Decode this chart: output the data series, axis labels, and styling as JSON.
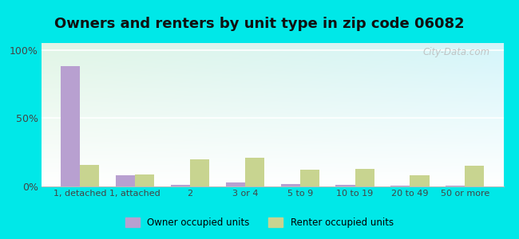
{
  "title": "Owners and renters by unit type in zip code 06082",
  "categories": [
    "1, detached",
    "1, attached",
    "2",
    "3 or 4",
    "5 to 9",
    "10 to 19",
    "20 to 49",
    "50 or more"
  ],
  "owner_values": [
    88,
    8,
    1,
    3,
    2,
    1,
    0.5,
    0.5
  ],
  "renter_values": [
    16,
    9,
    20,
    21,
    12,
    13,
    8,
    15
  ],
  "owner_color": "#b8a0d0",
  "renter_color": "#c8d490",
  "background_outer": "#00e8e8",
  "background_plot_topleft": "#d8ede0",
  "background_plot_topright": "#c8e8d8",
  "background_plot_bottom": "#f8fff8",
  "title_fontsize": 13,
  "ylabel_ticks": [
    "0%",
    "50%",
    "100%"
  ],
  "ytick_vals": [
    0,
    50,
    100
  ],
  "ylim": [
    0,
    105
  ],
  "watermark": "City-Data.com",
  "bar_width": 0.35,
  "legend_owner": "Owner occupied units",
  "legend_renter": "Renter occupied units"
}
